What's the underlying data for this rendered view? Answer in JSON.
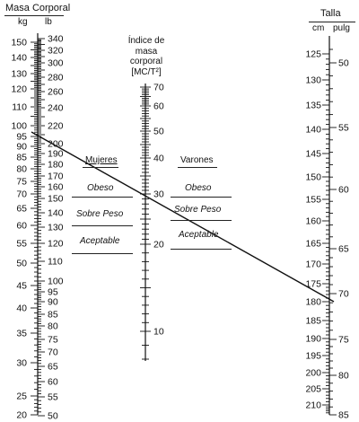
{
  "mass_scale": {
    "title": "Masa Corporal",
    "kg_unit": "kg",
    "lb_unit": "lb",
    "kg_labels": [
      "150",
      "140",
      "130",
      "120",
      "110",
      "100",
      "95",
      "90",
      "85",
      "80",
      "75",
      "70",
      "65",
      "60",
      "55",
      "50",
      "45",
      "40",
      "35",
      "30",
      "25",
      "20"
    ],
    "lb_labels": [
      "340",
      "320",
      "300",
      "280",
      "260",
      "240",
      "220",
      "200",
      "190",
      "180",
      "170",
      "160",
      "150",
      "140",
      "130",
      "120",
      "110",
      "100",
      "95",
      "90",
      "85",
      "80",
      "75",
      "70",
      "65",
      "60",
      "55",
      "50"
    ]
  },
  "bmi_scale": {
    "title_lines": [
      "Índice de",
      "masa",
      "corporal",
      "[MC/T²]"
    ],
    "labels": [
      "70",
      "60",
      "50",
      "40",
      "30",
      "20",
      "10"
    ]
  },
  "height_scale": {
    "title": "Talla",
    "cm_unit": "cm",
    "in_unit": "pulg",
    "cm_labels": [
      "125",
      "130",
      "135",
      "140",
      "145",
      "150",
      "155",
      "160",
      "165",
      "170",
      "175",
      "180",
      "185",
      "190",
      "195",
      "200",
      "205",
      "210"
    ],
    "in_labels": [
      "50",
      "55",
      "60",
      "65",
      "70",
      "75",
      "80",
      "85"
    ]
  },
  "women": {
    "heading": "Mujeres",
    "categories": [
      "Obeso",
      "Sobre Peso",
      "Aceptable"
    ]
  },
  "men": {
    "heading": "Varones",
    "categories": [
      "Obeso",
      "Sobre Peso",
      "Aceptable"
    ]
  },
  "example_line": {
    "mass_kg": 97,
    "height_cm": 180,
    "bmi": 30
  }
}
